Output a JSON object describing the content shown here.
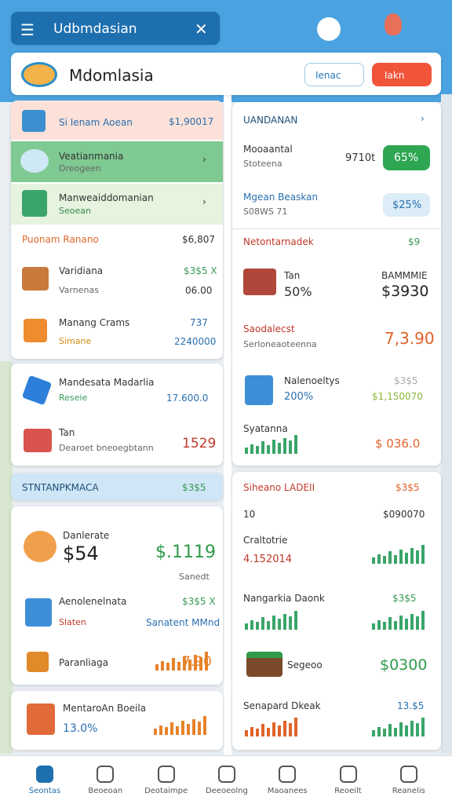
{
  "top_bar": {
    "title": "Udbmdasian"
  },
  "header": {
    "title": "Mdomlasia",
    "search_button": "Ienac",
    "action_button": "Iakn"
  },
  "left_panel": {
    "rows": [
      {
        "title": "Si Ienam Aoean",
        "value": "$1,90017"
      },
      {
        "title": "Veatianmania",
        "subtitle": "Dreogeen"
      },
      {
        "title": "Manweaiddomanian",
        "subtitle": "Seoean"
      },
      {
        "title": "Puonam Ranano",
        "value": "$6,807"
      },
      {
        "title": "Varidiana",
        "subtitle": "Varnenas",
        "value": "$3$5 X",
        "value2": "06.00"
      },
      {
        "title": "Manang Crams",
        "subtitle": "Simane",
        "value": "737",
        "value2": "2240000"
      }
    ]
  },
  "left_panel2": {
    "rows": [
      {
        "title": "Mandesata Madarlia",
        "subtitle": "Reseie",
        "value": "17.600.0"
      },
      {
        "title": "Tan",
        "subtitle": "Dearoet bneoegbtann",
        "value": "1529"
      }
    ]
  },
  "left_panel3": {
    "header": "STNTANPKMACA",
    "header_value": "$3$5",
    "rows": [
      {
        "title": "Danlerate",
        "value": "$54",
        "value2": "$.1119",
        "note": "Sanedt"
      },
      {
        "title": "Aenolenelnata",
        "subtitle": "Slaten",
        "value": "$3$5 X",
        "value2": "Sanatent MMnd"
      },
      {
        "title": "Paranliaga",
        "value": "7.90"
      }
    ]
  },
  "left_panel4": {
    "title": "MentaroAn Boeila",
    "value": "13.0%"
  },
  "right_panel": {
    "header": "UANDANAN",
    "rows": [
      {
        "title": "Mooaantal",
        "subtitle": "Stoteena",
        "value": "9710t",
        "badge": "65%"
      },
      {
        "title": "Mgean Beaskan",
        "subtitle": "S08WS 71",
        "badge": "$25%"
      },
      {
        "title": "Netontarnadek",
        "value": "$9"
      },
      {
        "title": "Tan",
        "subtitle": "50%",
        "label": "BAMMMIE",
        "value": "$3930"
      },
      {
        "title": "Saodalecst",
        "subtitle": "Serloneaoteenna",
        "value": "7,3.90"
      },
      {
        "title": "Nalenoeltys",
        "subtitle": "200%",
        "value": "$3$5",
        "value2": "$1,150070"
      },
      {
        "title": "Syatanna",
        "value": "$ 036.0"
      }
    ]
  },
  "right_panel2": {
    "header": "Siheano LADEII",
    "header_value": "$3$5",
    "rows": [
      {
        "title": "10",
        "value": "$090070"
      },
      {
        "title": "Craltotrie",
        "value": "4.152014"
      },
      {
        "title": "Nangarkia Daonk",
        "value": "$3$5"
      },
      {
        "title": "Segeoo",
        "value": "$0300"
      },
      {
        "title": "Senapard Dkeak",
        "value": "13.$5"
      }
    ]
  },
  "bottom_nav": [
    "Seontas",
    "Beoeoan",
    "Deotaimpe",
    "Deeoeolng",
    "Maoanees",
    "Reoeilt",
    "Reanelis"
  ]
}
